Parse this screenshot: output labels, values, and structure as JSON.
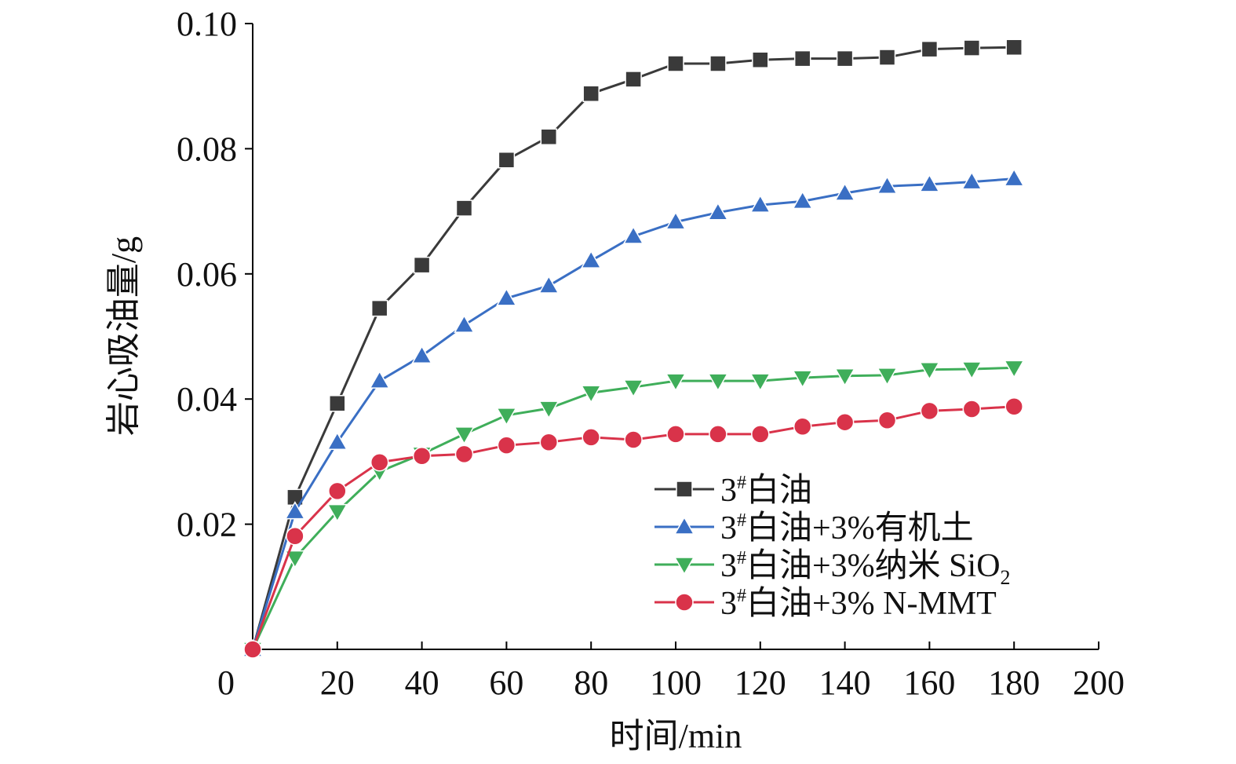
{
  "chart_data": {
    "type": "line",
    "xlabel": "时间/min",
    "ylabel": "岩心吸油量/g",
    "xlim": [
      0,
      200
    ],
    "ylim": [
      0,
      0.1
    ],
    "x_ticks": [
      "0",
      "20",
      "40",
      "60",
      "80",
      "100",
      "120",
      "140",
      "160",
      "180",
      "200"
    ],
    "y_ticks": [
      "0.02",
      "0.04",
      "0.06",
      "0.08",
      "0.10"
    ],
    "grid": false,
    "legend_position": "bottom-right",
    "x": [
      0,
      10,
      20,
      30,
      40,
      50,
      60,
      70,
      80,
      90,
      100,
      110,
      120,
      130,
      140,
      150,
      160,
      170,
      180
    ],
    "series": [
      {
        "name": "3#白油",
        "name_parts": {
          "pre": "3",
          "sup": "#",
          "main": "白油",
          "sub": ""
        },
        "color": "#3a3a3a",
        "marker": "square",
        "values": [
          0,
          0.0243,
          0.0393,
          0.0545,
          0.0614,
          0.0705,
          0.0782,
          0.0819,
          0.0888,
          0.0911,
          0.0936,
          0.0936,
          0.0942,
          0.0944,
          0.0944,
          0.0946,
          0.0959,
          0.0961,
          0.0962
        ]
      },
      {
        "name": "3#白油+3%有机土",
        "name_parts": {
          "pre": "3",
          "sup": "#",
          "main": "白油+3%有机土",
          "sub": ""
        },
        "color": "#3a6fc4",
        "marker": "triangle-up",
        "values": [
          0,
          0.022,
          0.0331,
          0.0429,
          0.0469,
          0.0518,
          0.0561,
          0.0581,
          0.0621,
          0.066,
          0.0683,
          0.0698,
          0.071,
          0.0716,
          0.0729,
          0.074,
          0.0743,
          0.0747,
          0.0752
        ]
      },
      {
        "name": "3#白油+3%纳米 SiO2",
        "name_parts": {
          "pre": "3",
          "sup": "#",
          "main": "白油+3%纳米 SiO",
          "sub": "2"
        },
        "color": "#3fae5a",
        "marker": "triangle-down",
        "values": [
          0,
          0.0146,
          0.022,
          0.0284,
          0.0312,
          0.0344,
          0.0374,
          0.0385,
          0.041,
          0.0419,
          0.0429,
          0.0429,
          0.0429,
          0.0434,
          0.0437,
          0.0438,
          0.0447,
          0.0448,
          0.045
        ]
      },
      {
        "name": "3#白油+3% N-MMT",
        "name_parts": {
          "pre": "3",
          "sup": "#",
          "main": "白油+3% N-MMT",
          "sub": ""
        },
        "color": "#d9334a",
        "marker": "circle",
        "values": [
          0,
          0.0181,
          0.0253,
          0.0299,
          0.0309,
          0.0312,
          0.0326,
          0.0331,
          0.0339,
          0.0335,
          0.0344,
          0.0344,
          0.0344,
          0.0356,
          0.0363,
          0.0366,
          0.0381,
          0.0384,
          0.0388
        ]
      }
    ]
  }
}
